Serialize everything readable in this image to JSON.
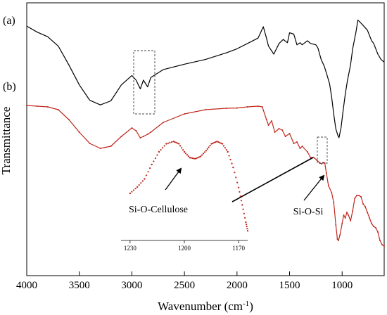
{
  "chart_data": {
    "type": "line",
    "xlabel": "Wavenumber (cm",
    "xlabel_sup": "-1",
    "xlabel_close": ")",
    "ylabel": "Transmittance",
    "x_reversed": true,
    "xlim": [
      4000,
      600
    ],
    "x_ticks": [
      4000,
      3500,
      3000,
      2500,
      2000,
      1500,
      1000
    ],
    "x_tick_labels": [
      "4000",
      "3500",
      "3000",
      "2500",
      "2000",
      "1500",
      "1000"
    ],
    "y_ticks_shown": false,
    "grid": false,
    "series": [
      {
        "label": "(a)",
        "color": "#000000",
        "points": [
          [
            4000,
            0.91
          ],
          [
            3900,
            0.865
          ],
          [
            3800,
            0.83
          ],
          [
            3700,
            0.76
          ],
          [
            3600,
            0.62
          ],
          [
            3500,
            0.47
          ],
          [
            3400,
            0.355
          ],
          [
            3300,
            0.32
          ],
          [
            3200,
            0.35
          ],
          [
            3100,
            0.47
          ],
          [
            3000,
            0.54
          ],
          [
            2960,
            0.505
          ],
          [
            2920,
            0.44
          ],
          [
            2890,
            0.505
          ],
          [
            2850,
            0.455
          ],
          [
            2820,
            0.525
          ],
          [
            2700,
            0.585
          ],
          [
            2500,
            0.625
          ],
          [
            2300,
            0.66
          ],
          [
            2100,
            0.71
          ],
          [
            2000,
            0.74
          ],
          [
            1900,
            0.78
          ],
          [
            1800,
            0.82
          ],
          [
            1750,
            0.905
          ],
          [
            1720,
            0.82
          ],
          [
            1700,
            0.76
          ],
          [
            1650,
            0.7
          ],
          [
            1600,
            0.78
          ],
          [
            1560,
            0.81
          ],
          [
            1520,
            0.785
          ],
          [
            1500,
            0.86
          ],
          [
            1460,
            0.85
          ],
          [
            1430,
            0.77
          ],
          [
            1400,
            0.785
          ],
          [
            1380,
            0.77
          ],
          [
            1330,
            0.8
          ],
          [
            1300,
            0.78
          ],
          [
            1250,
            0.77
          ],
          [
            1230,
            0.745
          ],
          [
            1200,
            0.66
          ],
          [
            1170,
            0.61
          ],
          [
            1150,
            0.56
          ],
          [
            1120,
            0.48
          ],
          [
            1100,
            0.38
          ],
          [
            1080,
            0.25
          ],
          [
            1060,
            0.14
          ],
          [
            1040,
            0.09
          ],
          [
            1030,
            0.075
          ],
          [
            1010,
            0.15
          ],
          [
            990,
            0.28
          ],
          [
            970,
            0.4
          ],
          [
            950,
            0.5
          ],
          [
            920,
            0.62
          ],
          [
            900,
            0.74
          ],
          [
            870,
            0.86
          ],
          [
            850,
            0.955
          ],
          [
            830,
            0.94
          ],
          [
            800,
            0.915
          ],
          [
            760,
            0.88
          ],
          [
            720,
            0.8
          ],
          [
            700,
            0.78
          ],
          [
            660,
            0.7
          ],
          [
            630,
            0.66
          ],
          [
            600,
            0.64
          ]
        ]
      },
      {
        "label": "(b)",
        "color": "#c0281e",
        "points": [
          [
            4000,
            0.7
          ],
          [
            3900,
            0.695
          ],
          [
            3800,
            0.69
          ],
          [
            3700,
            0.67
          ],
          [
            3600,
            0.6
          ],
          [
            3500,
            0.51
          ],
          [
            3400,
            0.43
          ],
          [
            3300,
            0.395
          ],
          [
            3200,
            0.41
          ],
          [
            3100,
            0.48
          ],
          [
            3000,
            0.54
          ],
          [
            2960,
            0.52
          ],
          [
            2920,
            0.47
          ],
          [
            2890,
            0.48
          ],
          [
            2850,
            0.495
          ],
          [
            2820,
            0.51
          ],
          [
            2700,
            0.58
          ],
          [
            2500,
            0.64
          ],
          [
            2300,
            0.67
          ],
          [
            2100,
            0.68
          ],
          [
            2000,
            0.682
          ],
          [
            1900,
            0.69
          ],
          [
            1800,
            0.695
          ],
          [
            1760,
            0.69
          ],
          [
            1720,
            0.6
          ],
          [
            1700,
            0.56
          ],
          [
            1670,
            0.59
          ],
          [
            1640,
            0.51
          ],
          [
            1600,
            0.535
          ],
          [
            1570,
            0.525
          ],
          [
            1540,
            0.48
          ],
          [
            1500,
            0.5
          ],
          [
            1460,
            0.43
          ],
          [
            1430,
            0.44
          ],
          [
            1400,
            0.395
          ],
          [
            1380,
            0.41
          ],
          [
            1330,
            0.37
          ],
          [
            1300,
            0.33
          ],
          [
            1270,
            0.33
          ],
          [
            1240,
            0.31
          ],
          [
            1210,
            0.29
          ],
          [
            1195,
            0.285
          ],
          [
            1180,
            0.295
          ],
          [
            1165,
            0.29
          ],
          [
            1150,
            0.22
          ],
          [
            1130,
            0.13
          ],
          [
            1100,
            0.08
          ],
          [
            1080,
            0.01
          ],
          [
            1060,
            -0.15
          ],
          [
            1045,
            -0.25
          ],
          [
            1035,
            -0.26
          ],
          [
            1020,
            -0.22
          ],
          [
            1000,
            -0.14
          ],
          [
            985,
            -0.08
          ],
          [
            970,
            -0.1
          ],
          [
            955,
            -0.06
          ],
          [
            940,
            -0.08
          ],
          [
            920,
            -0.12
          ],
          [
            900,
            -0.05
          ],
          [
            880,
            0.04
          ],
          [
            860,
            0.06
          ],
          [
            840,
            0.06
          ],
          [
            820,
            0.05
          ],
          [
            800,
            0.0
          ],
          [
            780,
            -0.02
          ],
          [
            760,
            -0.06
          ],
          [
            740,
            -0.1
          ],
          [
            720,
            -0.14
          ],
          [
            700,
            -0.16
          ],
          [
            680,
            -0.17
          ],
          [
            660,
            -0.2
          ],
          [
            640,
            -0.26
          ],
          [
            620,
            -0.29
          ],
          [
            600,
            -0.3
          ]
        ]
      }
    ],
    "inset": {
      "type": "line",
      "xlim": [
        1235,
        1165
      ],
      "x_ticks": [
        1230,
        1200,
        1170
      ],
      "x_tick_labels": [
        "1230",
        "1200",
        "1170"
      ],
      "color": "#c0281e",
      "points": [
        [
          1230,
          0.0
        ],
        [
          1226,
          0.11
        ],
        [
          1222,
          0.25
        ],
        [
          1218,
          0.5
        ],
        [
          1214,
          0.72
        ],
        [
          1210,
          0.86
        ],
        [
          1206,
          0.9
        ],
        [
          1203,
          0.86
        ],
        [
          1200,
          0.72
        ],
        [
          1197,
          0.62
        ],
        [
          1194,
          0.6
        ],
        [
          1191,
          0.64
        ],
        [
          1188,
          0.74
        ],
        [
          1185,
          0.86
        ],
        [
          1182,
          0.9
        ],
        [
          1179,
          0.86
        ],
        [
          1176,
          0.72
        ],
        [
          1173,
          0.45
        ],
        [
          1170,
          0.1
        ],
        [
          1168,
          -0.2
        ],
        [
          1166,
          -0.5
        ],
        [
          1165,
          -0.65
        ]
      ]
    },
    "annotations": [
      "Si-O-Cellulose",
      "Si-O-Si"
    ]
  }
}
